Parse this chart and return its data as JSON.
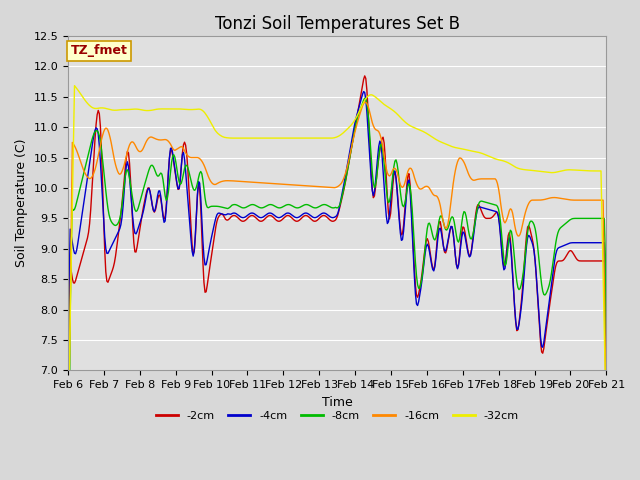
{
  "title": "Tonzi Soil Temperatures Set B",
  "xlabel": "Time",
  "ylabel": "Soil Temperature (C)",
  "ylim": [
    7.0,
    12.5
  ],
  "yticks": [
    7.0,
    7.5,
    8.0,
    8.5,
    9.0,
    9.5,
    10.0,
    10.5,
    11.0,
    11.5,
    12.0,
    12.5
  ],
  "legend_label": "TZ_fmet",
  "legend_box_facecolor": "#ffffcc",
  "legend_box_edgecolor": "#cc9900",
  "line_colors": {
    "-2cm": "#cc0000",
    "-4cm": "#0000cc",
    "-8cm": "#00bb00",
    "-16cm": "#ff8800",
    "-32cm": "#eeee00"
  },
  "bg_color": "#d8d8d8",
  "plot_bg_color": "#e0e0e0",
  "grid_color": "#ffffff",
  "xtick_days": [
    6,
    7,
    8,
    9,
    10,
    11,
    12,
    13,
    14,
    15,
    16,
    17,
    18,
    19,
    20,
    21
  ],
  "title_fontsize": 12,
  "axis_label_fontsize": 9,
  "tick_fontsize": 8,
  "legend_entries": [
    "-2cm",
    "-4cm",
    "-8cm",
    "-16cm",
    "-32cm"
  ],
  "legend_colors": [
    "#cc0000",
    "#0000cc",
    "#00bb00",
    "#ff8800",
    "#eeee00"
  ]
}
